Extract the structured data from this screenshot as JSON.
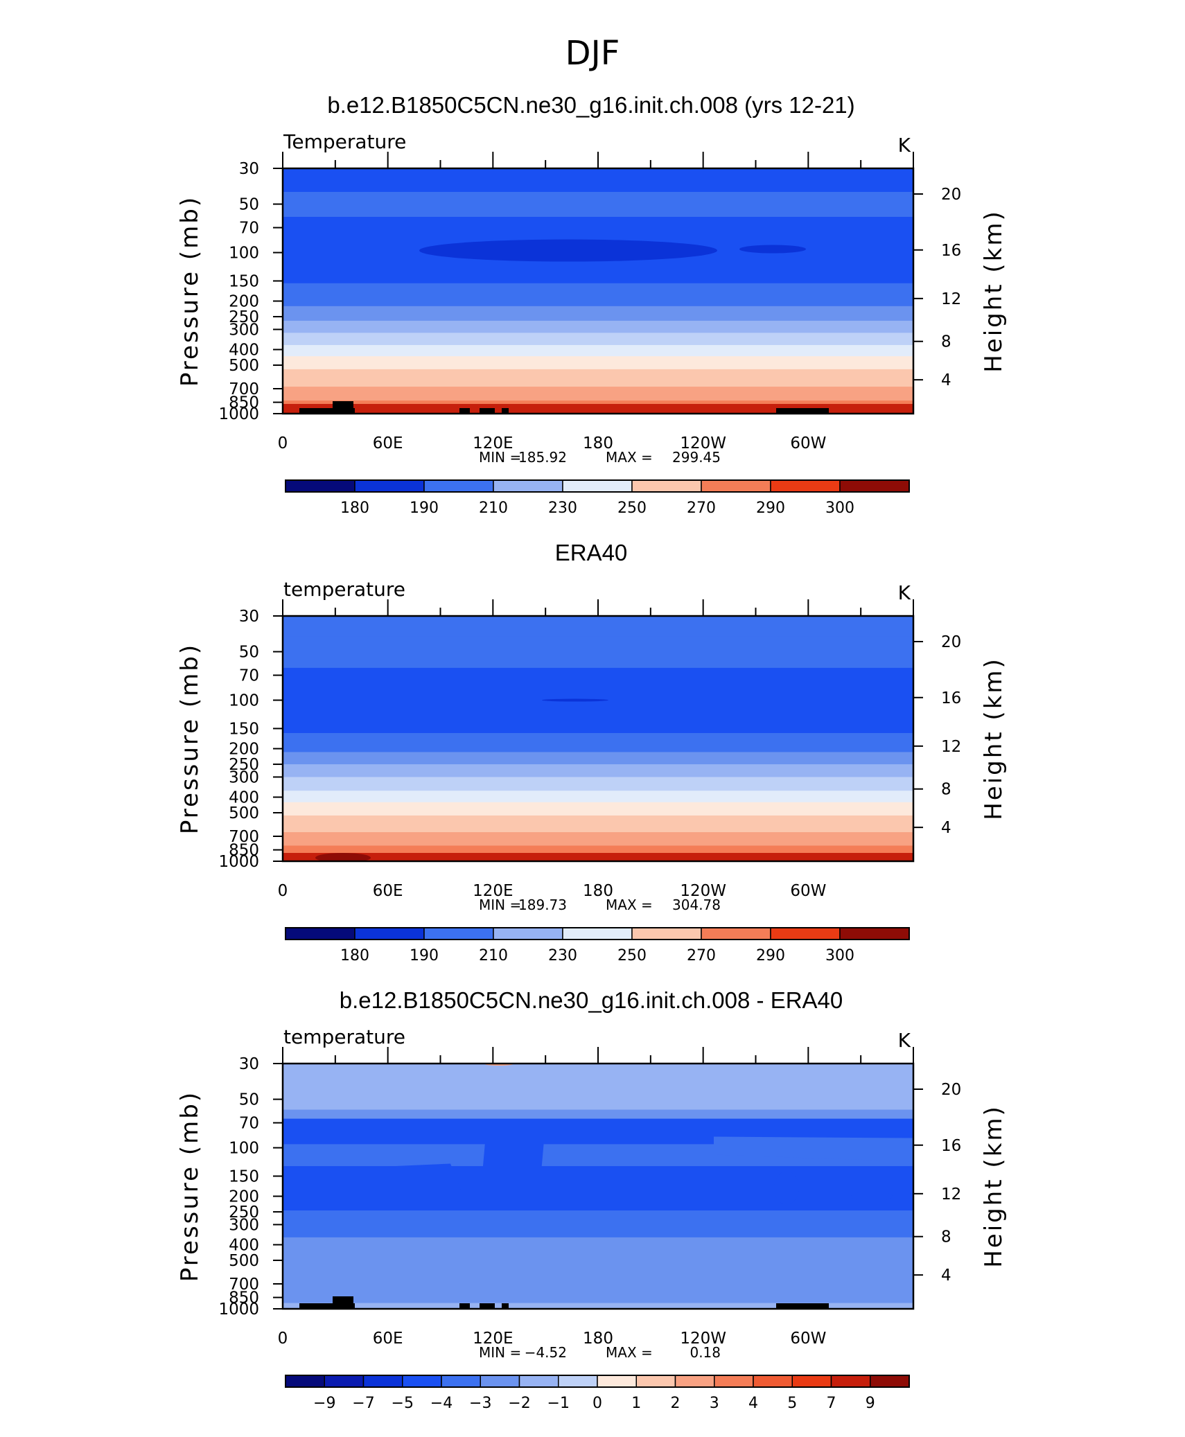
{
  "figure_title": "DJF",
  "chart_data": [
    {
      "type": "heatmap",
      "panel": "model",
      "title": "b.e12.B1850C5CN.ne30_g16.init.ch.008 (yrs 12-21)",
      "left_label": "Temperature",
      "units": "K",
      "ylabel": "Pressure (mb)",
      "y2label": "Height (km)",
      "y_ticks": [
        "30",
        "50",
        "70",
        "100",
        "150",
        "200",
        "250",
        "300",
        "400",
        "500",
        "700",
        "850",
        "1000"
      ],
      "y2_ticks": [
        "20",
        "16",
        "12",
        "8",
        "4"
      ],
      "x_ticks": [
        "0",
        "60E",
        "120E",
        "180",
        "120W",
        "60W"
      ],
      "ylim": [
        1000,
        30
      ],
      "stats": {
        "min_label": "MIN =",
        "min": "185.92",
        "max_label": "MAX =",
        "max": "299.45"
      },
      "colorbar": {
        "labels": [
          "180",
          "190",
          "210",
          "230",
          "250",
          "270",
          "290",
          "300"
        ]
      },
      "bands": [
        {
          "pressure": 30,
          "level": 3
        },
        {
          "pressure": 42,
          "level": 4
        },
        {
          "pressure": 60,
          "level": 3
        },
        {
          "pressure": 130,
          "level": 3
        },
        {
          "pressure": 155,
          "level": 4
        },
        {
          "pressure": 215,
          "level": 5
        },
        {
          "pressure": 265,
          "level": 6
        },
        {
          "pressure": 315,
          "level": 7
        },
        {
          "pressure": 375,
          "level": 8
        },
        {
          "pressure": 440,
          "level": 9
        },
        {
          "pressure": 530,
          "level": 10
        },
        {
          "pressure": 680,
          "level": 11
        },
        {
          "pressure": 830,
          "level": 12
        },
        {
          "pressure": 940,
          "level": 13
        }
      ]
    },
    {
      "type": "heatmap",
      "panel": "obs",
      "title": "ERA40",
      "left_label": "temperature",
      "units": "K",
      "ylabel": "Pressure (mb)",
      "y2label": "Height (km)",
      "y_ticks": [
        "30",
        "50",
        "70",
        "100",
        "150",
        "200",
        "250",
        "300",
        "400",
        "500",
        "700",
        "850",
        "1000"
      ],
      "y2_ticks": [
        "20",
        "16",
        "12",
        "8",
        "4"
      ],
      "x_ticks": [
        "0",
        "60E",
        "120E",
        "180",
        "120W",
        "60W"
      ],
      "ylim": [
        1000,
        30
      ],
      "stats": {
        "min_label": "MIN =",
        "min": "189.73",
        "max_label": "MAX =",
        "max": "304.78"
      },
      "colorbar": {
        "labels": [
          "180",
          "190",
          "210",
          "230",
          "250",
          "270",
          "290",
          "300"
        ]
      },
      "bands": [
        {
          "pressure": 30,
          "level": 4
        },
        {
          "pressure": 40,
          "level": 4
        },
        {
          "pressure": 63,
          "level": 3
        },
        {
          "pressure": 130,
          "level": 3
        },
        {
          "pressure": 160,
          "level": 4
        },
        {
          "pressure": 210,
          "level": 5
        },
        {
          "pressure": 250,
          "level": 6
        },
        {
          "pressure": 300,
          "level": 7
        },
        {
          "pressure": 365,
          "level": 8
        },
        {
          "pressure": 430,
          "level": 9
        },
        {
          "pressure": 520,
          "level": 10
        },
        {
          "pressure": 660,
          "level": 11
        },
        {
          "pressure": 800,
          "level": 12
        },
        {
          "pressure": 920,
          "level": 13
        }
      ]
    },
    {
      "type": "heatmap",
      "panel": "difference",
      "title": "b.e12.B1850C5CN.ne30_g16.init.ch.008 - ERA40",
      "left_label": "temperature",
      "units": "K",
      "ylabel": "Pressure (mb)",
      "y2label": "Height (km)",
      "y_ticks": [
        "30",
        "50",
        "70",
        "100",
        "150",
        "200",
        "250",
        "300",
        "400",
        "500",
        "700",
        "850",
        "1000"
      ],
      "y2_ticks": [
        "20",
        "16",
        "12",
        "8",
        "4"
      ],
      "x_ticks": [
        "0",
        "60E",
        "120E",
        "180",
        "120W",
        "60W"
      ],
      "ylim": [
        1000,
        30
      ],
      "stats": {
        "min_label": "MIN =",
        "min": "−4.52",
        "max_label": "MAX =",
        "max": "0.18"
      },
      "colorbar": {
        "labels": [
          "−9",
          "−7",
          "−5",
          "−4",
          "−3",
          "−2",
          "−1",
          "0",
          "1",
          "2",
          "3",
          "4",
          "5",
          "7",
          "9"
        ]
      },
      "bands": [
        {
          "pressure": 30,
          "level": 6
        },
        {
          "pressure": 58,
          "level": 5
        },
        {
          "pressure": 66,
          "level": 3
        },
        {
          "pressure": 95,
          "level": 4
        },
        {
          "pressure": 130,
          "level": 3
        },
        {
          "pressure": 245,
          "level": 4
        },
        {
          "pressure": 360,
          "level": 5
        },
        {
          "pressure": 920,
          "level": 6
        }
      ]
    }
  ],
  "colors": {
    "palette": [
      "#050a7a",
      "#0a1bb0",
      "#0b33d8",
      "#1a50f2",
      "#3c71f0",
      "#6b93ef",
      "#97b3f3",
      "#bed1f7",
      "#e2ecfa",
      "#fde9dc",
      "#fbc7ae",
      "#f8a283",
      "#f47d57",
      "#ef5b33",
      "#e93b14",
      "#c61f0c",
      "#8e0c06"
    ]
  }
}
